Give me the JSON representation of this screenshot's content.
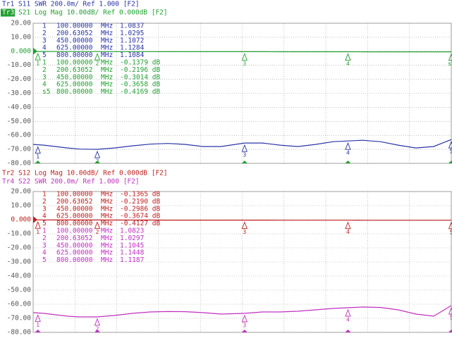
{
  "chart_data": [
    {
      "type": "line",
      "ylim": [
        -80,
        20
      ],
      "yticks": [
        {
          "value": 20,
          "label": "20.00"
        },
        {
          "value": 10,
          "label": "10.00"
        },
        {
          "value": 0,
          "label": "0.000"
        },
        {
          "value": -10,
          "label": "-10.00"
        },
        {
          "value": -20,
          "label": "-20.00"
        },
        {
          "value": -30,
          "label": "-30.00"
        },
        {
          "value": -40,
          "label": "-40.00"
        },
        {
          "value": -50,
          "label": "-50.00"
        },
        {
          "value": -60,
          "label": "-60.00"
        },
        {
          "value": -70,
          "label": "-70.00"
        },
        {
          "value": -80,
          "label": "-80.00"
        }
      ],
      "xlim": [
        92,
        800
      ],
      "grid": true,
      "x": [
        92,
        110,
        130,
        150,
        170,
        200,
        230,
        260,
        290,
        320,
        350,
        380,
        410,
        450,
        480,
        510,
        540,
        570,
        600,
        625,
        650,
        680,
        710,
        740,
        770,
        800
      ],
      "series": [
        {
          "id": "Tr1",
          "name": "S11 SWR 200.0m/ Ref 1.000 [F2]",
          "color": "#2a35a8",
          "active": false,
          "values": [
            -66.5,
            -67,
            -68,
            -69,
            -69.8,
            -70,
            -69,
            -67.5,
            -66.3,
            -65.8,
            -66.5,
            -68,
            -68,
            -65.5,
            -65.5,
            -67,
            -68,
            -66.5,
            -64.5,
            -64,
            -63.5,
            -64.5,
            -67,
            -69,
            -68,
            -63
          ],
          "markers": [
            {
              "id": "1",
              "freq": {
                "value": 100,
                "label": "100.00000"
              },
              "unit": "MHz",
              "reading": "1.0837"
            },
            {
              "id": "2",
              "freq": {
                "value": 200.63052,
                "label": "200.63052"
              },
              "unit": "MHz",
              "reading": "1.0295"
            },
            {
              "id": "3",
              "freq": {
                "value": 450,
                "label": "450.00000"
              },
              "unit": "MHz",
              "reading": "1.1072"
            },
            {
              "id": "4",
              "freq": {
                "value": 625,
                "label": "625.00000"
              },
              "unit": "MHz",
              "reading": "1.1284"
            },
            {
              "id": "5",
              "freq": {
                "value": 800,
                "label": "800.00000"
              },
              "unit": "MHz",
              "reading": "1.1084"
            }
          ]
        },
        {
          "id": "Tr3",
          "name": "S21 Log Mag 10.00dB/ Ref 0.000dB [F2]",
          "color": "#22a032",
          "active": true,
          "values": [
            -0.14,
            -0.16,
            -0.19,
            -0.21,
            -0.22,
            -0.22,
            -0.23,
            -0.25,
            -0.27,
            -0.29,
            -0.3,
            -0.3,
            -0.3,
            -0.3,
            -0.32,
            -0.34,
            -0.35,
            -0.36,
            -0.37,
            -0.37,
            -0.38,
            -0.39,
            -0.4,
            -0.41,
            -0.41,
            -0.42
          ],
          "markers": [
            {
              "id": "1",
              "freq": {
                "value": 100,
                "label": "100.00000"
              },
              "unit": "MHz",
              "reading": "-0.1379 dB"
            },
            {
              "id": "2",
              "freq": {
                "value": 200.63052,
                "label": "200.63052"
              },
              "unit": "MHz",
              "reading": "-0.2196 dB"
            },
            {
              "id": "3",
              "freq": {
                "value": 450,
                "label": "450.00000"
              },
              "unit": "MHz",
              "reading": "-0.3014 dB"
            },
            {
              "id": "4",
              "freq": {
                "value": 625,
                "label": "625.00000"
              },
              "unit": "MHz",
              "reading": "-0.3658 dB"
            },
            {
              "id": "s5",
              "freq": {
                "value": 800,
                "label": "800.00000"
              },
              "unit": "MHz",
              "reading": "-0.4169 dB"
            }
          ]
        }
      ]
    },
    {
      "type": "line",
      "ylim": [
        -80,
        20
      ],
      "yticks": [
        {
          "value": 20,
          "label": "20.00"
        },
        {
          "value": 10,
          "label": "10.00"
        },
        {
          "value": 0,
          "label": "0.000"
        },
        {
          "value": -10,
          "label": "-10.00"
        },
        {
          "value": -20,
          "label": "-20.00"
        },
        {
          "value": -30,
          "label": "-30.00"
        },
        {
          "value": -40,
          "label": "-40.00"
        },
        {
          "value": -50,
          "label": "-50.00"
        },
        {
          "value": -60,
          "label": "-60.00"
        },
        {
          "value": -70,
          "label": "-70.00"
        },
        {
          "value": -80,
          "label": "-80.00"
        }
      ],
      "xlim": [
        92,
        800
      ],
      "grid": true,
      "x": [
        92,
        110,
        130,
        150,
        170,
        200,
        230,
        260,
        290,
        320,
        350,
        380,
        410,
        450,
        480,
        510,
        540,
        570,
        600,
        625,
        650,
        680,
        710,
        740,
        770,
        800
      ],
      "series": [
        {
          "id": "Tr2",
          "name": "S12 Log Mag 10.00dB/ Ref 0.000dB [F2]",
          "color": "#c02020",
          "active": false,
          "values": [
            -0.13,
            -0.15,
            -0.18,
            -0.2,
            -0.21,
            -0.22,
            -0.23,
            -0.25,
            -0.26,
            -0.28,
            -0.29,
            -0.3,
            -0.3,
            -0.3,
            -0.31,
            -0.33,
            -0.35,
            -0.36,
            -0.37,
            -0.37,
            -0.38,
            -0.39,
            -0.4,
            -0.41,
            -0.41,
            -0.41
          ],
          "markers": [
            {
              "id": "1",
              "freq": {
                "value": 100,
                "label": "100.00000"
              },
              "unit": "MHz",
              "reading": "-0.1365 dB"
            },
            {
              "id": "2",
              "freq": {
                "value": 200.63052,
                "label": "200.63052"
              },
              "unit": "MHz",
              "reading": "-0.2190 dB"
            },
            {
              "id": "3",
              "freq": {
                "value": 450,
                "label": "450.00000"
              },
              "unit": "MHz",
              "reading": "-0.2986 dB"
            },
            {
              "id": "4",
              "freq": {
                "value": 625,
                "label": "625.00000"
              },
              "unit": "MHz",
              "reading": "-0.3674 dB"
            },
            {
              "id": "5",
              "freq": {
                "value": 800,
                "label": "800.00000"
              },
              "unit": "MHz",
              "reading": "-0.4127 dB"
            }
          ]
        },
        {
          "id": "Tr4",
          "name": "S22 SWR 200.0m/ Ref 1.000 [F2]",
          "color": "#c030c0",
          "active": false,
          "values": [
            -66,
            -66.5,
            -67.5,
            -68.5,
            -69,
            -69,
            -68,
            -66.5,
            -65.5,
            -65.2,
            -65.3,
            -66,
            -67,
            -66.5,
            -65.5,
            -65.5,
            -65,
            -64,
            -63,
            -62.5,
            -62,
            -62.3,
            -64,
            -67,
            -68.5,
            -61
          ],
          "markers": [
            {
              "id": "1",
              "freq": {
                "value": 100,
                "label": "100.00000"
              },
              "unit": "MHz",
              "reading": "1.0823"
            },
            {
              "id": "2",
              "freq": {
                "value": 200.63052,
                "label": "200.63052"
              },
              "unit": "MHz",
              "reading": "1.0297"
            },
            {
              "id": "3",
              "freq": {
                "value": 450,
                "label": "450.00000"
              },
              "unit": "MHz",
              "reading": "1.1045"
            },
            {
              "id": "4",
              "freq": {
                "value": 625,
                "label": "625.00000"
              },
              "unit": "MHz",
              "reading": "1.1448"
            },
            {
              "id": "5",
              "freq": {
                "value": 800,
                "label": "800.00000"
              },
              "unit": "MHz",
              "reading": "1.1187"
            }
          ]
        }
      ]
    }
  ]
}
